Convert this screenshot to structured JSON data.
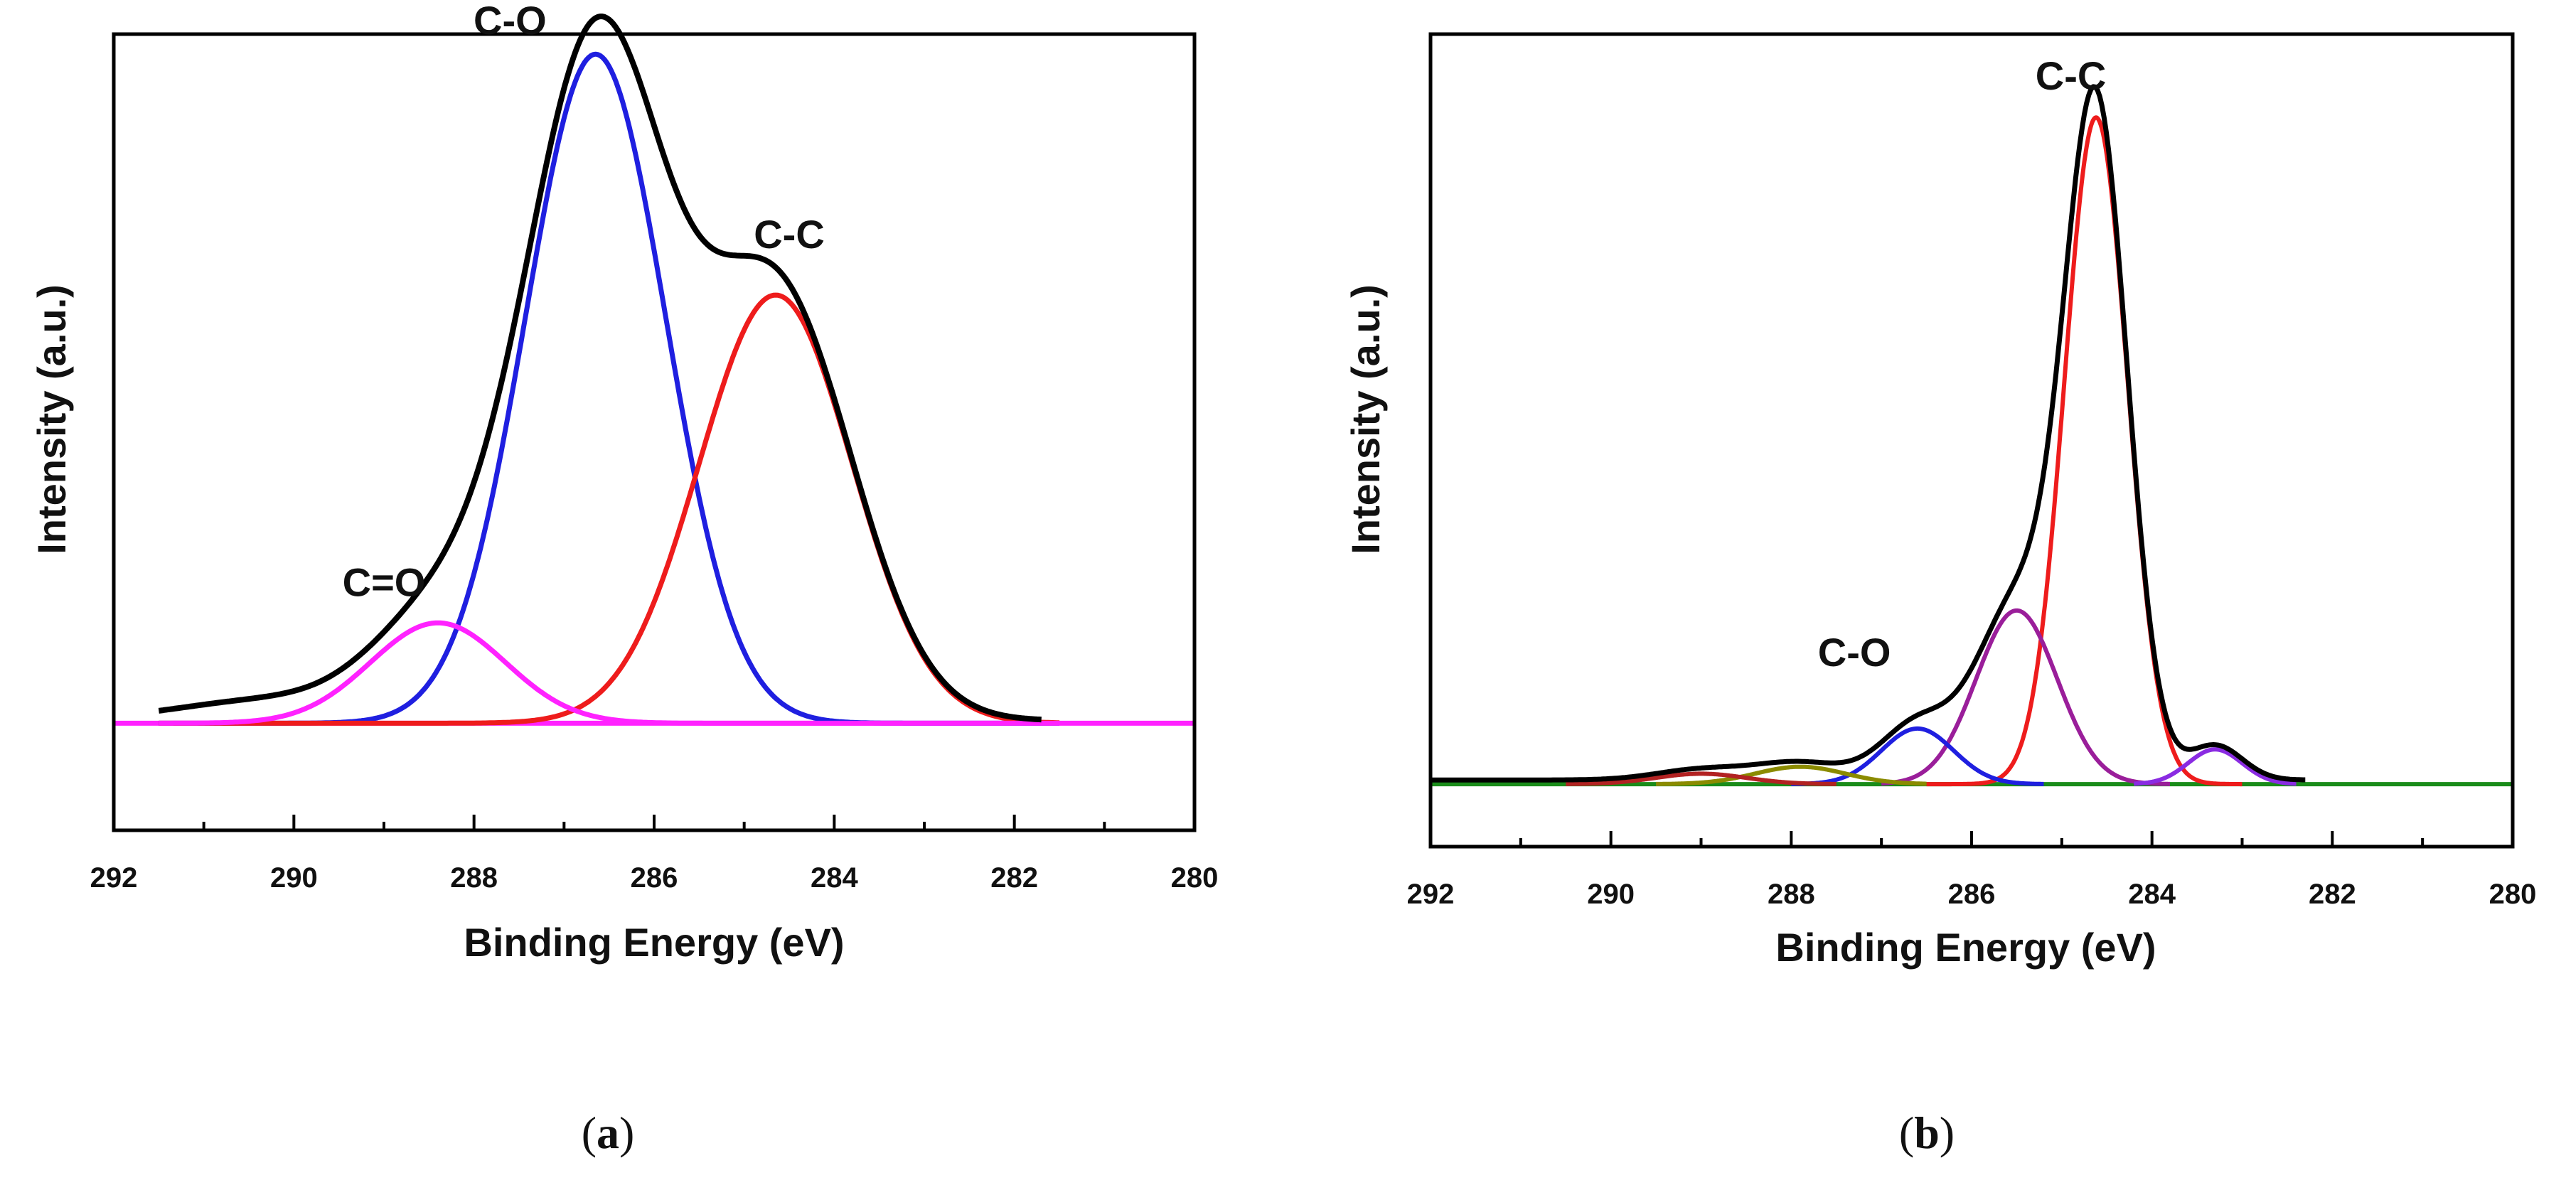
{
  "chart_data": [
    {
      "panel": "a",
      "type": "line",
      "caption": {
        "open": "(",
        "letter": "a",
        "close": ")"
      },
      "xlabel": "Binding Energy (eV)",
      "ylabel": "Intensity (a.u.)",
      "xlim": [
        292,
        280
      ],
      "x_reversed": true,
      "ylim": [
        -0.16,
        1.03
      ],
      "xticks": [
        292,
        290,
        288,
        286,
        284,
        282,
        280
      ],
      "grid": false,
      "annotations": [
        {
          "text": "C-O",
          "x": 287.6,
          "y": 1.03
        },
        {
          "text": "C-C",
          "x": 284.5,
          "y": 0.71
        },
        {
          "text": "C=O",
          "x": 289.0,
          "y": 0.19
        }
      ],
      "series": [
        {
          "name": "C-O",
          "color": "#1f1fe0",
          "type": "gaussian",
          "center": 286.65,
          "amplitude": 1.0,
          "sigma": 0.78,
          "offset": 0,
          "range": [
            291.5,
            281.5
          ]
        },
        {
          "name": "C-C",
          "color": "#ee1c1c",
          "type": "gaussian",
          "center": 284.65,
          "amplitude": 0.64,
          "sigma": 0.85,
          "offset": 0,
          "range": [
            291.5,
            281.5
          ]
        },
        {
          "name": "C=O",
          "color": "#ff22ff",
          "type": "gaussian",
          "center": 288.4,
          "amplitude": 0.15,
          "sigma": 0.75,
          "offset": 0,
          "range": [
            291.5,
            281.5
          ]
        },
        {
          "name": "baseline",
          "color": "#ff22ff",
          "type": "flat",
          "value": 0,
          "range": [
            292,
            280
          ]
        },
        {
          "name": "envelope",
          "color": "#000000",
          "type": "sum",
          "components": [
            "C-O",
            "C-C",
            "C=O"
          ],
          "extra": [
            {
              "center": 290.3,
              "amplitude": 0.03,
              "sigma": 1.0
            }
          ],
          "offset": 0.004,
          "range": [
            291.5,
            281.7
          ]
        }
      ]
    },
    {
      "panel": "b",
      "type": "line",
      "caption": {
        "open": "(",
        "letter": "b",
        "close": ")"
      },
      "xlabel": "Binding Energy (eV)",
      "ylabel": "Intensity (a.u.)",
      "xlim": [
        292,
        280
      ],
      "x_reversed": true,
      "ylim": [
        -0.09,
        1.08
      ],
      "xticks": [
        292,
        290,
        288,
        286,
        284,
        282,
        280
      ],
      "grid": false,
      "annotations": [
        {
          "text": "C-C",
          "x": 284.9,
          "y": 1.0
        },
        {
          "text": "C-O",
          "x": 287.3,
          "y": 0.17
        }
      ],
      "series": [
        {
          "name": "C-C",
          "color": "#ee1c1c",
          "type": "gaussian",
          "center": 284.62,
          "amplitude": 0.96,
          "sigma": 0.35,
          "offset": 0,
          "range": [
            286.5,
            283.0
          ]
        },
        {
          "name": "C-O (285.5)",
          "color": "#9a1e9a",
          "type": "gaussian",
          "center": 285.5,
          "amplitude": 0.25,
          "sigma": 0.45,
          "offset": 0,
          "range": [
            287.0,
            283.8
          ]
        },
        {
          "name": "C-O",
          "color": "#1f1fe0",
          "type": "gaussian",
          "center": 286.6,
          "amplitude": 0.08,
          "sigma": 0.4,
          "offset": 0,
          "range": [
            288.0,
            285.2
          ]
        },
        {
          "name": "283.3 eV",
          "color": "#8a2be2",
          "type": "gaussian",
          "center": 283.3,
          "amplitude": 0.05,
          "sigma": 0.3,
          "offset": 0,
          "range": [
            284.2,
            282.4
          ]
        },
        {
          "name": "288 eV",
          "color": "#8b8b00",
          "type": "gaussian",
          "center": 287.9,
          "amplitude": 0.025,
          "sigma": 0.5,
          "offset": 0,
          "range": [
            289.5,
            286.5
          ]
        },
        {
          "name": "289 eV",
          "color": "#b22222",
          "type": "gaussian",
          "center": 289.0,
          "amplitude": 0.015,
          "sigma": 0.5,
          "offset": 0,
          "range": [
            290.5,
            287.5
          ]
        },
        {
          "name": "baseline",
          "color": "#1a8c1a",
          "type": "flat",
          "value": 0,
          "range": [
            292,
            280
          ]
        },
        {
          "name": "envelope",
          "color": "#000000",
          "type": "sum",
          "components": [
            "C-C",
            "C-O (285.5)",
            "C-O",
            "283.3 eV",
            "288 eV",
            "289 eV"
          ],
          "extra": [],
          "offset": 0.006,
          "range": [
            292,
            282.3
          ]
        }
      ]
    }
  ]
}
